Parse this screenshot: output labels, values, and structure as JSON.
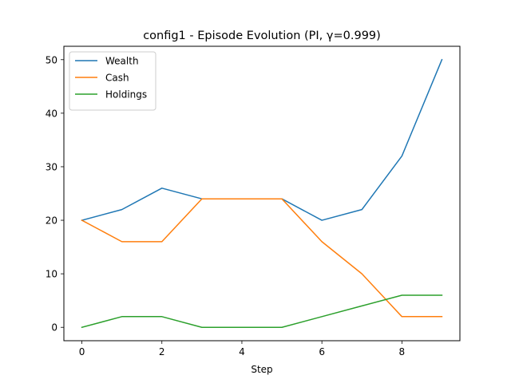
{
  "chart_data": {
    "type": "line",
    "title": "config1 - Episode Evolution (PI, γ=0.999)",
    "xlabel": "Step",
    "ylabel": "",
    "x": [
      0,
      1,
      2,
      3,
      4,
      5,
      6,
      7,
      8,
      9
    ],
    "xlim": [
      -0.45,
      9.45
    ],
    "ylim": [
      -2.5,
      52.5
    ],
    "xticks": [
      0,
      2,
      4,
      6,
      8
    ],
    "yticks": [
      0,
      10,
      20,
      30,
      40,
      50
    ],
    "grid": false,
    "legend_position": "top-left",
    "series": [
      {
        "name": "Wealth",
        "color": "#1f77b4",
        "values": [
          20,
          22,
          26,
          24,
          24,
          24,
          20,
          22,
          32,
          50
        ]
      },
      {
        "name": "Cash",
        "color": "#ff7f0e",
        "values": [
          20,
          16,
          16,
          24,
          24,
          24,
          16,
          10,
          2,
          2
        ]
      },
      {
        "name": "Holdings",
        "color": "#2ca02c",
        "values": [
          0,
          2,
          2,
          0,
          0,
          0,
          2,
          4,
          6,
          6
        ]
      }
    ]
  }
}
